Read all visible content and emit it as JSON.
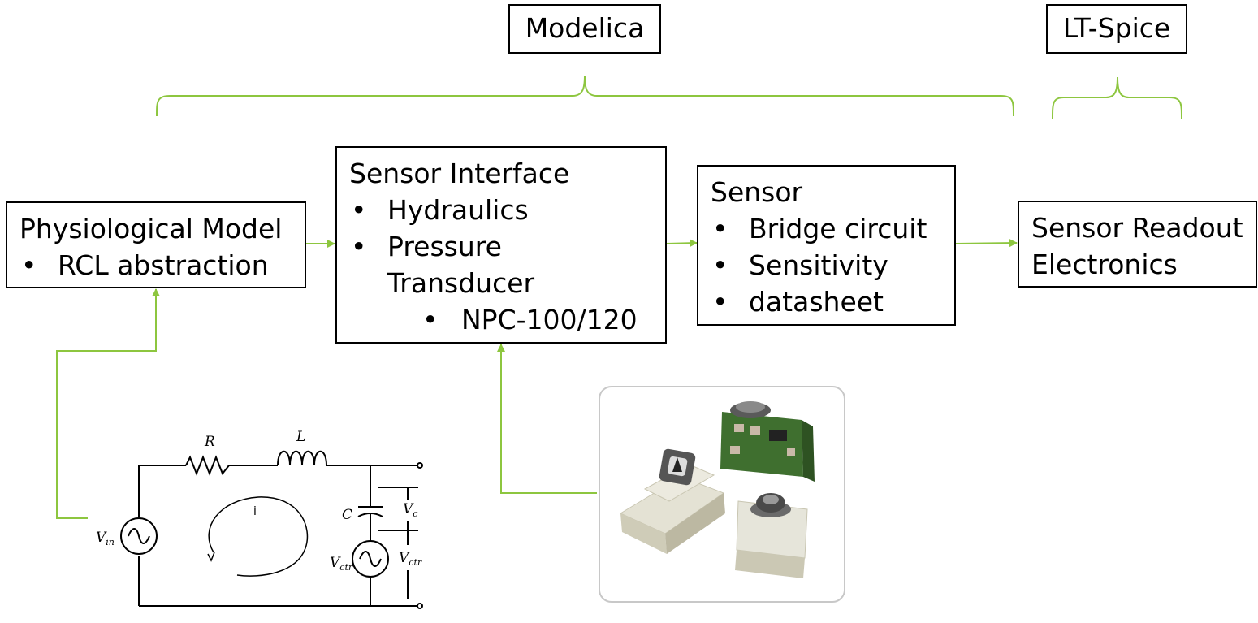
{
  "tools": {
    "modelica": "Modelica",
    "ltspice": "LT-Spice"
  },
  "blocks": {
    "physiological": {
      "title": "Physiological Model",
      "bullets": [
        "RCL abstraction"
      ]
    },
    "interface": {
      "title": "Sensor Interface",
      "bullets": [
        "Hydraulics",
        "Pressure",
        "Transducer"
      ],
      "sub_bullets": [
        "NPC-100/120"
      ]
    },
    "sensor": {
      "title": "Sensor",
      "bullets": [
        "Bridge circuit",
        "Sensitivity",
        "datasheet"
      ]
    },
    "readout": {
      "title": "Sensor Readout",
      "title2": "Electronics"
    }
  },
  "circuit": {
    "r": "R",
    "l": "L",
    "c": "C",
    "i": "i",
    "vin": "V",
    "vin_sub": "in",
    "vc": "V",
    "vc_sub": "c",
    "vctr": "V",
    "vctr_sub": "ctr",
    "vctr2": "V",
    "vctr2_sub": "ctr"
  },
  "colors": {
    "accent": "#8dc63f",
    "border": "#000000"
  }
}
